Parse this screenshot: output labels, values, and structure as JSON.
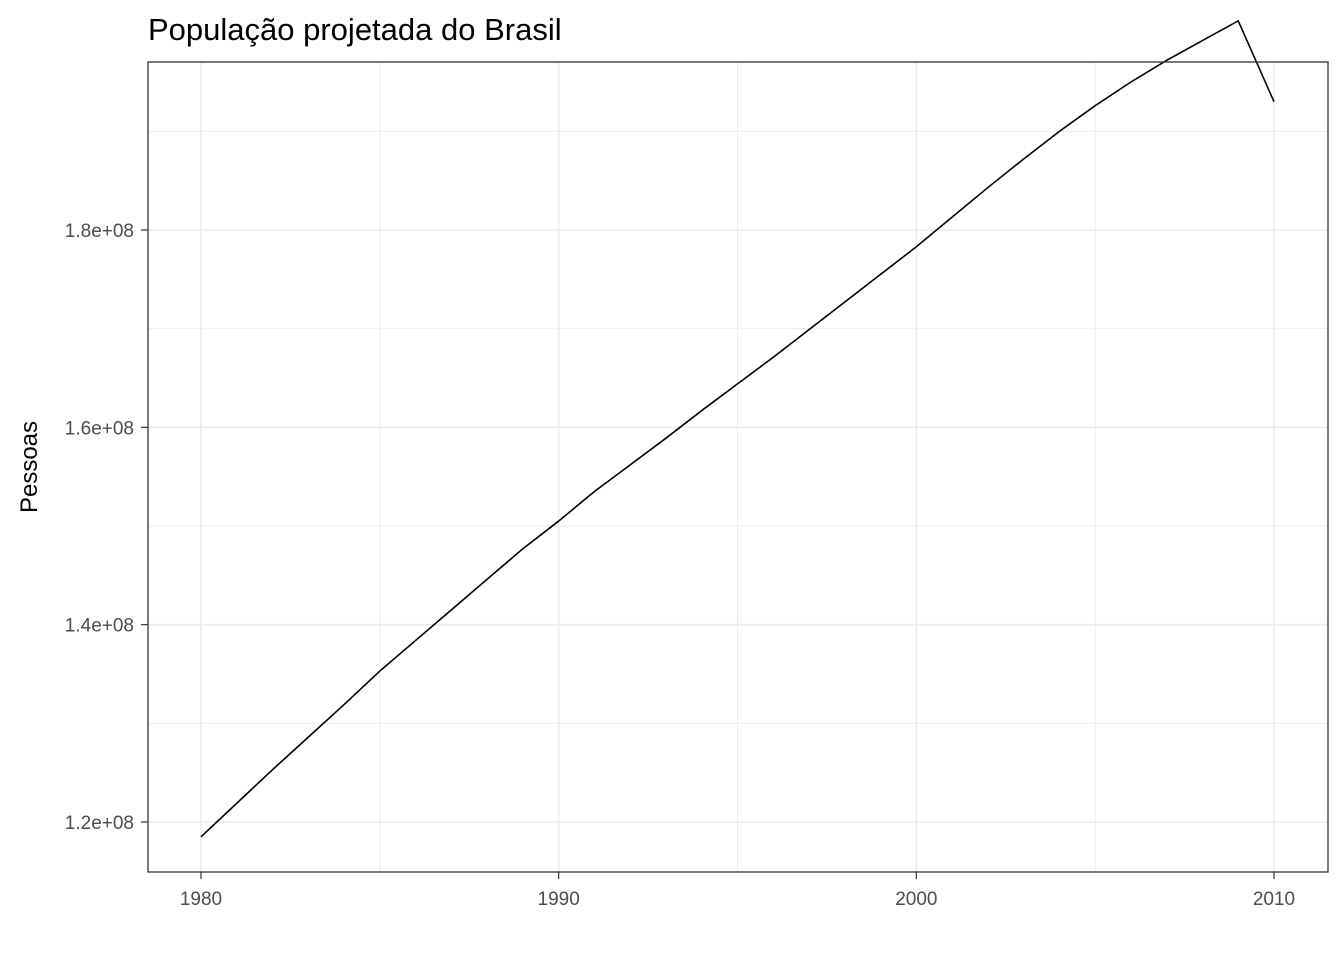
{
  "chart_data": {
    "type": "line",
    "title": "População projetada do Brasil",
    "xlabel": "",
    "ylabel": "Pessoas",
    "xlim": [
      1978.5,
      2011.5
    ],
    "ylim": [
      115000000,
      197000000
    ],
    "x_ticks": [
      1980,
      1990,
      2000,
      2010
    ],
    "x_tick_labels": [
      "1980",
      "1990",
      "2000",
      "2010"
    ],
    "y_ticks": [
      120000000,
      140000000,
      160000000,
      180000000
    ],
    "y_tick_labels": [
      "1.2e+08",
      "1.4e+08",
      "1.6e+08",
      "1.8e+08"
    ],
    "grid": true,
    "line_color": "#000000",
    "series": [
      {
        "x": [
          1980,
          1981,
          1982,
          1983,
          1984,
          1985,
          1986,
          1987,
          1988,
          1989,
          1990,
          1991,
          1992,
          1993,
          1994,
          1995,
          1996,
          1997,
          1998,
          1999,
          2000,
          2001,
          2002,
          2003,
          2004,
          2005,
          2006,
          2007,
          2008,
          2009,
          2010
        ],
        "values": [
          118500000,
          121900000,
          125300000,
          128600000,
          131900000,
          135300000,
          138400000,
          141500000,
          144600000,
          147700000,
          150500000,
          153500000,
          156200000,
          158900000,
          161700000,
          164400000,
          167100000,
          169900000,
          172700000,
          175500000,
          178300000,
          181300000,
          184300000,
          187200000,
          190000000,
          192600000,
          195000000,
          197200000,
          199200000,
          201200000,
          193000000
        ]
      }
    ]
  }
}
